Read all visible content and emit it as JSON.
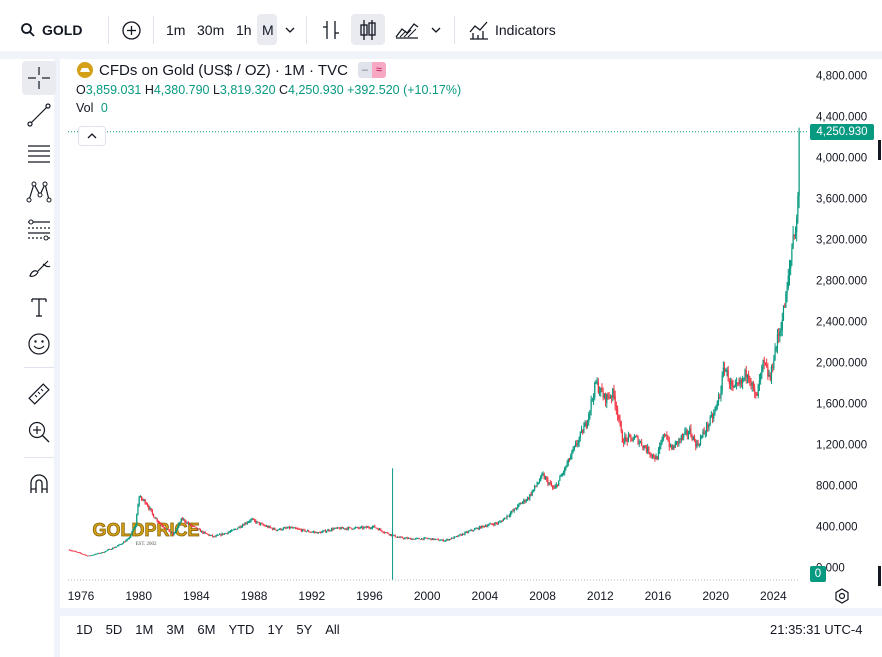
{
  "toolbar": {
    "symbol": "GOLD",
    "intervals": [
      "1m",
      "30m",
      "1h",
      "M"
    ],
    "active_interval": "M",
    "indicators_label": "Indicators"
  },
  "legend": {
    "title": "CFDs on Gold (US$ / OZ) · 1M · TVC",
    "open_label": "O",
    "open": "3,859.031",
    "high_label": "H",
    "high": "4,380.790",
    "low_label": "L",
    "low": "3,819.320",
    "close_label": "C",
    "close": "4,250.930",
    "change": "+392.520 (+10.17%)",
    "vol_label": "Vol",
    "vol_value": "0"
  },
  "watermark": {
    "brand": "GOLDPRICE",
    "sub": "EST. 2002"
  },
  "price_badge": "4,250.930",
  "volume_badge": "0",
  "timezone": "21:35:31 UTC-4",
  "ranges": [
    "1D",
    "5D",
    "1M",
    "3M",
    "6M",
    "YTD",
    "1Y",
    "5Y",
    "All"
  ],
  "colors": {
    "up": "#089981",
    "down": "#f23645",
    "text": "#131722"
  },
  "chart_data": {
    "type": "candlestick",
    "title": "CFDs on Gold (US$ / OZ) · 1M · TVC",
    "ylabel": "US$ / OZ",
    "ylim": [
      -100,
      4950
    ],
    "yticks": [
      0,
      400,
      800,
      1200,
      1600,
      2000,
      2400,
      2800,
      3200,
      3600,
      4000,
      4400,
      4800
    ],
    "ytick_labels": [
      "0.000",
      "400.000",
      "800.000",
      "1,200.000",
      "1,600.000",
      "2,000.000",
      "2,400.000",
      "2,800.000",
      "3,200.000",
      "3,600.000",
      "4,000.000",
      "4,400.000",
      "4,800.000"
    ],
    "xticks": [
      1976,
      1980,
      1984,
      1988,
      1992,
      1996,
      2000,
      2004,
      2008,
      2012,
      2016,
      2020,
      2024
    ],
    "xlim": [
      1975.1,
      2026.4
    ],
    "last_close": 4250.93,
    "anomaly_wick": {
      "year": 1997.6,
      "high": 970,
      "low": -200
    },
    "series_keypoints": [
      [
        1975.2,
        175
      ],
      [
        1976.5,
        115
      ],
      [
        1977.5,
        150
      ],
      [
        1978.5,
        210
      ],
      [
        1979.3,
        280
      ],
      [
        1979.8,
        420
      ],
      [
        1980.0,
        690
      ],
      [
        1980.5,
        640
      ],
      [
        1981.0,
        510
      ],
      [
        1981.5,
        430
      ],
      [
        1982.4,
        320
      ],
      [
        1983.0,
        480
      ],
      [
        1983.5,
        420
      ],
      [
        1984.5,
        340
      ],
      [
        1985.2,
        300
      ],
      [
        1986.5,
        360
      ],
      [
        1987.8,
        470
      ],
      [
        1988.5,
        420
      ],
      [
        1989.5,
        370
      ],
      [
        1990.5,
        390
      ],
      [
        1991.5,
        360
      ],
      [
        1992.5,
        340
      ],
      [
        1993.5,
        380
      ],
      [
        1994.5,
        385
      ],
      [
        1995.5,
        388
      ],
      [
        1996.3,
        400
      ],
      [
        1997.0,
        350
      ],
      [
        1998.0,
        295
      ],
      [
        1999.0,
        280
      ],
      [
        2000.0,
        285
      ],
      [
        2001.2,
        265
      ],
      [
        2002.0,
        300
      ],
      [
        2003.0,
        360
      ],
      [
        2004.0,
        410
      ],
      [
        2005.0,
        440
      ],
      [
        2006.0,
        560
      ],
      [
        2006.5,
        630
      ],
      [
        2007.0,
        680
      ],
      [
        2008.0,
        900
      ],
      [
        2008.8,
        760
      ],
      [
        2009.5,
        950
      ],
      [
        2010.5,
        1250
      ],
      [
        2011.0,
        1400
      ],
      [
        2011.7,
        1800
      ],
      [
        2012.3,
        1650
      ],
      [
        2012.9,
        1700
      ],
      [
        2013.3,
        1450
      ],
      [
        2013.5,
        1250
      ],
      [
        2014.5,
        1260
      ],
      [
        2015.9,
        1060
      ],
      [
        2016.5,
        1330
      ],
      [
        2016.9,
        1150
      ],
      [
        2017.5,
        1250
      ],
      [
        2018.2,
        1330
      ],
      [
        2018.7,
        1190
      ],
      [
        2019.5,
        1400
      ],
      [
        2019.9,
        1500
      ],
      [
        2020.3,
        1700
      ],
      [
        2020.6,
        1970
      ],
      [
        2021.2,
        1720
      ],
      [
        2021.8,
        1800
      ],
      [
        2022.2,
        1930
      ],
      [
        2022.8,
        1640
      ],
      [
        2023.3,
        1990
      ],
      [
        2023.8,
        1830
      ],
      [
        2024.0,
        2050
      ],
      [
        2024.5,
        2350
      ],
      [
        2024.9,
        2650
      ],
      [
        2025.2,
        3000
      ],
      [
        2025.4,
        3300
      ],
      [
        2025.6,
        3300
      ],
      [
        2025.75,
        3860
      ],
      [
        2025.83,
        4250.93
      ]
    ]
  }
}
